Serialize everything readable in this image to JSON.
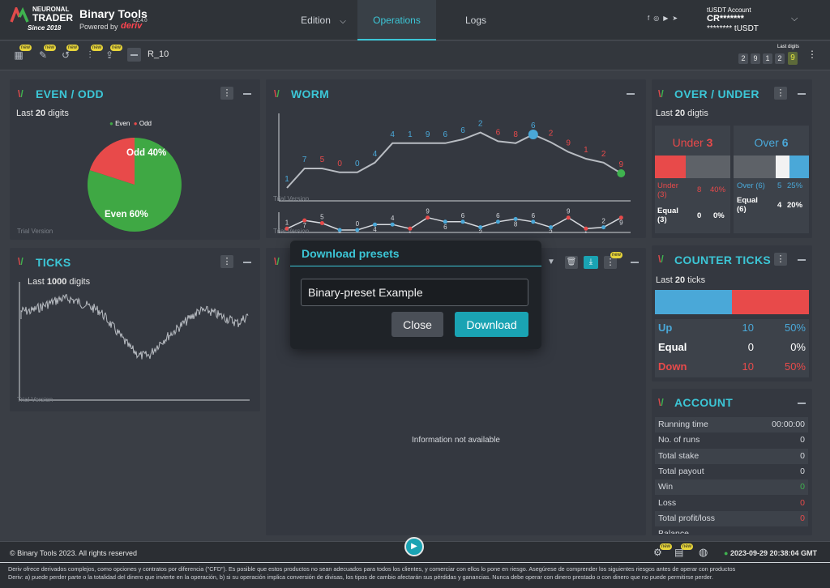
{
  "brand": {
    "logo_line1": "NEURONAL",
    "logo_line2": "TRADER",
    "since": "Since 2018",
    "app_name": "Binary Tools",
    "version": "v.2.4.0",
    "powered_by": "Powered by",
    "partner": "deriv"
  },
  "nav": [
    {
      "label": "Edition",
      "active": false
    },
    {
      "label": "Operations",
      "active": true
    },
    {
      "label": "Logs",
      "active": false
    }
  ],
  "account_header": {
    "line1": "tUSDT Account",
    "line2": "CR*******",
    "line3": "******** tUSDT"
  },
  "toolbar": {
    "symbol": "R_10",
    "new_badge": "new",
    "last_digits_label": "Last digits",
    "last_digits": [
      "2",
      "9",
      "1",
      "2",
      "9"
    ]
  },
  "even_odd": {
    "title": "EVEN / ODD",
    "subtitle_prefix": "Last",
    "subtitle_count": "20",
    "subtitle_suffix": "digits",
    "legend_even": "Even",
    "legend_odd": "Odd",
    "odd_label": "Odd 40%",
    "even_label": "Even 60%",
    "trial": "Trial Version",
    "even_color": "#3fa844",
    "odd_color": "#e84a4a"
  },
  "worm": {
    "title": "WORM",
    "digits": [
      "1",
      "7",
      "5",
      "0",
      "0",
      "4",
      "4",
      "1",
      "9",
      "6",
      "6",
      "2",
      "6",
      "8",
      "6",
      "2",
      "9",
      "1",
      "2",
      "9"
    ],
    "trial": "Trial Version"
  },
  "over_under": {
    "title": "OVER / UNDER",
    "subtitle_prefix": "Last",
    "subtitle_count": "20",
    "subtitle_suffix": "digtis",
    "under_label": "Under",
    "under_value": "3",
    "over_label": "Over",
    "over_value": "6",
    "under_row": {
      "label": "Under (3)",
      "count": "8",
      "pct": "40%"
    },
    "equal_left": {
      "label": "Equal (3)",
      "count": "0",
      "pct": "0%"
    },
    "over_row": {
      "label": "Over (6)",
      "count": "5",
      "pct": "25%"
    },
    "equal_right": {
      "label": "Equal (6)",
      "count": "4",
      "pct": "20%"
    }
  },
  "ticks": {
    "title": "TICKS",
    "subtitle_prefix": "Last",
    "subtitle_count": "1000",
    "subtitle_suffix": "digits",
    "trial": "Trial Version"
  },
  "center_panel": {
    "info": "Information not available",
    "new_badge": "new"
  },
  "counter_ticks": {
    "title": "COUNTER TICKS",
    "subtitle_prefix": "Last",
    "subtitle_count": "20",
    "subtitle_suffix": "ticks",
    "rows": [
      {
        "label": "Up",
        "count": "10",
        "pct": "50%",
        "color": "#4aa8d8"
      },
      {
        "label": "Equal",
        "count": "0",
        "pct": "0%",
        "color": "#ffffff"
      },
      {
        "label": "Down",
        "count": "10",
        "pct": "50%",
        "color": "#e84a4a"
      }
    ]
  },
  "account": {
    "title": "ACCOUNT",
    "rows": [
      {
        "k": "Running time",
        "v": "00:00:00"
      },
      {
        "k": "No. of runs",
        "v": "0"
      },
      {
        "k": "Total stake",
        "v": "0"
      },
      {
        "k": "Total payout",
        "v": "0"
      },
      {
        "k": "Win",
        "v": "0"
      },
      {
        "k": "Loss",
        "v": "0"
      },
      {
        "k": "Total profit/loss",
        "v": "0"
      },
      {
        "k": "Balance",
        "v": ""
      }
    ]
  },
  "modal": {
    "title": "Download presets",
    "input_value": "Binary-preset Example",
    "close_label": "Close",
    "download_label": "Download"
  },
  "footer": {
    "copyright": "© Binary Tools 2023. All rights reserved",
    "new_badge": "new",
    "datetime": "2023-09-29 20:38:04 GMT",
    "disclaimer_1": "Deriv ofrece derivados complejos, como opciones y contratos por diferencia (\"CFD\"). Es posible que estos productos no sean adecuados para todos los clientes, y comerciar con ellos lo pone en riesgo. Asegúrese de comprender los siguientes riesgos antes de operar con productos",
    "disclaimer_2": "Deriv: a) puede perder parte o la totalidad del dinero que invierte en la operación, b) si su operación implica conversión de divisas, los tipos de cambio afectarán sus pérdidas y ganancias. Nunca debe operar con dinero prestado o con dinero que no puede permitirse perder."
  }
}
